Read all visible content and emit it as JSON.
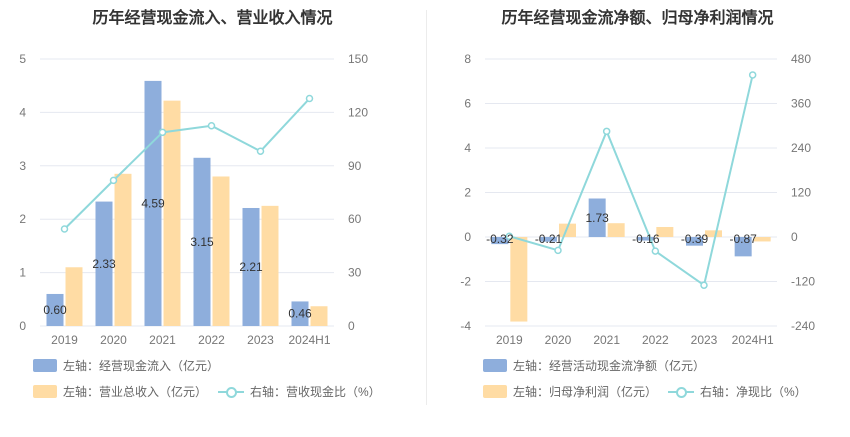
{
  "colors": {
    "bar1": "#8eaedc",
    "bar2": "#ffdca4",
    "line": "#8fd8db",
    "grid": "#e5e8f0",
    "axis_text": "#777777",
    "label_text": "#333333"
  },
  "left": {
    "title": "历年经营现金流入、营业收入情况",
    "legend": {
      "bar1": "左轴：经营现金流入（亿元）",
      "bar2": "左轴：营业总收入（亿元）",
      "line": "右轴：营收现金比（%）"
    }
  },
  "right": {
    "title": "历年经营现金流净额、归母净利润情况",
    "legend": {
      "bar1": "左轴：经营活动现金流净额（亿元）",
      "bar2": "左轴：归母净利润（亿元）",
      "line": "右轴：净现比（%）"
    }
  },
  "chart_data": [
    {
      "type": "bar+line",
      "title": "历年经营现金流入、营业收入情况",
      "categories": [
        "2019",
        "2020",
        "2021",
        "2022",
        "2023",
        "2024H1"
      ],
      "left_axis": {
        "ylim": [
          0,
          5
        ],
        "ticks": [
          0,
          1,
          2,
          3,
          4,
          5
        ]
      },
      "right_axis": {
        "ylim": [
          0,
          150
        ],
        "ticks": [
          0,
          30,
          60,
          90,
          120,
          150
        ]
      },
      "series": [
        {
          "name": "左轴：经营现金流入（亿元）",
          "axis": "left",
          "kind": "bar",
          "values": [
            0.6,
            2.33,
            4.59,
            3.15,
            2.21,
            0.46
          ],
          "labels": [
            "0.60",
            "2.33",
            "4.59",
            "3.15",
            "2.21",
            "0.46"
          ]
        },
        {
          "name": "左轴：营业总收入（亿元）",
          "axis": "left",
          "kind": "bar",
          "values": [
            1.1,
            2.85,
            4.22,
            2.8,
            2.25,
            0.37
          ]
        },
        {
          "name": "右轴：营收现金比（%）",
          "axis": "right",
          "kind": "line",
          "values": [
            54.5,
            81.8,
            108.8,
            112.5,
            98.2,
            127.8
          ]
        }
      ]
    },
    {
      "type": "bar+line",
      "title": "历年经营现金流净额、归母净利润情况",
      "categories": [
        "2019",
        "2020",
        "2021",
        "2022",
        "2023",
        "2024H1"
      ],
      "left_axis": {
        "ylim": [
          -4,
          8
        ],
        "ticks": [
          -4,
          -2,
          0,
          2,
          4,
          6,
          8
        ]
      },
      "right_axis": {
        "ylim": [
          -240,
          480
        ],
        "ticks": [
          -240,
          -120,
          0,
          120,
          240,
          360,
          480
        ]
      },
      "series": [
        {
          "name": "左轴：经营活动现金流净额（亿元）",
          "axis": "left",
          "kind": "bar",
          "values": [
            -0.32,
            -0.21,
            1.73,
            -0.16,
            -0.39,
            -0.87
          ],
          "labels": [
            "-0.32",
            "-0.21",
            "1.73",
            "-0.16",
            "-0.39",
            "-0.87"
          ]
        },
        {
          "name": "左轴：归母净利润（亿元）",
          "axis": "left",
          "kind": "bar",
          "values": [
            -3.8,
            0.6,
            0.62,
            0.45,
            0.3,
            -0.2
          ]
        },
        {
          "name": "右轴：净现比（%）",
          "axis": "right",
          "kind": "line",
          "values": [
            2,
            -36,
            285,
            -38,
            -130,
            437
          ]
        }
      ]
    }
  ]
}
